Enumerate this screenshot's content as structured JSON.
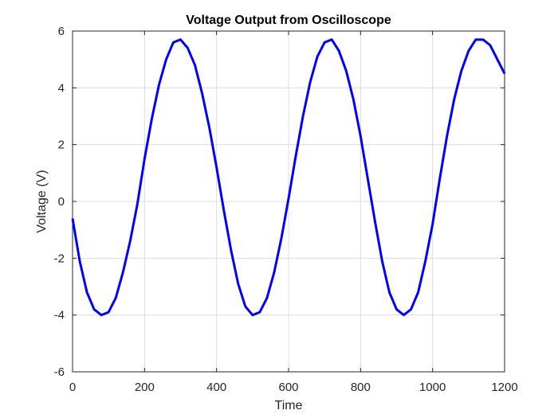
{
  "chart_data": {
    "type": "line",
    "title": "Voltage Output from Oscilloscope",
    "xlabel": "Time",
    "ylabel": "Voltage (V)",
    "xlim": [
      0,
      1200
    ],
    "ylim": [
      -6,
      6
    ],
    "xticks": [
      0,
      200,
      400,
      600,
      800,
      1000,
      1200
    ],
    "yticks": [
      -6,
      -4,
      -2,
      0,
      2,
      4,
      6
    ],
    "grid": true,
    "series": [
      {
        "color": "#0000ff",
        "x": [
          0,
          20,
          40,
          60,
          80,
          100,
          120,
          140,
          160,
          180,
          200,
          220,
          240,
          260,
          280,
          300,
          320,
          340,
          360,
          380,
          400,
          420,
          440,
          460,
          480,
          500,
          520,
          540,
          560,
          580,
          600,
          620,
          640,
          660,
          680,
          700,
          720,
          740,
          760,
          780,
          800,
          820,
          840,
          860,
          880,
          900,
          920,
          940,
          960,
          980,
          1000,
          1020,
          1040,
          1060,
          1080,
          1100,
          1120,
          1140,
          1160,
          1180,
          1200
        ],
        "y": [
          -0.6,
          -2.1,
          -3.2,
          -3.8,
          -4.0,
          -3.9,
          -3.4,
          -2.5,
          -1.4,
          -0.1,
          1.5,
          2.9,
          4.1,
          5.0,
          5.6,
          5.7,
          5.4,
          4.8,
          3.8,
          2.6,
          1.2,
          -0.3,
          -1.7,
          -2.9,
          -3.7,
          -4.0,
          -3.9,
          -3.4,
          -2.5,
          -1.3,
          0.1,
          1.6,
          3.0,
          4.2,
          5.1,
          5.6,
          5.7,
          5.3,
          4.6,
          3.6,
          2.3,
          0.8,
          -0.7,
          -2.1,
          -3.2,
          -3.8,
          -4.0,
          -3.8,
          -3.2,
          -2.1,
          -0.8,
          0.8,
          2.3,
          3.6,
          4.6,
          5.3,
          5.7,
          5.7,
          5.5,
          5.0,
          4.5
        ]
      }
    ]
  }
}
